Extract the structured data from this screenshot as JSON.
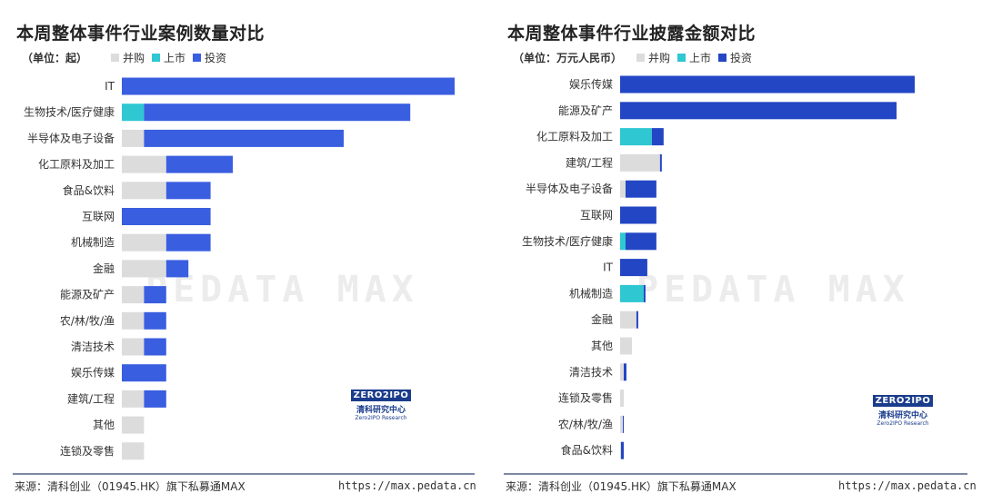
{
  "charts": [
    {
      "type": "bar",
      "orientation": "horizontal",
      "stacked": true,
      "title": "本周整体事件行业案例数量对比",
      "unit": "（单位：起）",
      "legend_position": "top-left",
      "categories": [
        "IT",
        "生物技术/医疗健康",
        "半导体及电子设备",
        "化工原料及加工",
        "食品&饮料",
        "互联网",
        "机械制造",
        "金融",
        "能源及矿产",
        "农/林/牧/渔",
        "清洁技术",
        "娱乐传媒",
        "建筑/工程",
        "其他",
        "连锁及零售"
      ],
      "series": [
        {
          "name": "并购",
          "color": "#dcdcdc",
          "values": [
            0,
            0,
            1,
            2,
            2,
            0,
            2,
            2,
            1,
            1,
            1,
            0,
            1,
            1,
            1
          ]
        },
        {
          "name": "上市",
          "color": "#2ec7d2",
          "values": [
            0,
            1,
            0,
            0,
            0,
            0,
            0,
            0,
            0,
            0,
            0,
            0,
            0,
            0,
            0
          ]
        },
        {
          "name": "投资",
          "color": "#3a5ee0",
          "values": [
            15,
            12,
            9,
            3,
            2,
            4,
            2,
            1,
            1,
            1,
            1,
            2,
            1,
            0,
            0
          ]
        }
      ]
    },
    {
      "type": "bar",
      "orientation": "horizontal",
      "stacked": true,
      "title": "本周整体事件行业披露金额对比",
      "unit": "（单位：万元人民币）",
      "legend_position": "top-left",
      "categories": [
        "娱乐传媒",
        "能源及矿产",
        "化工原料及加工",
        "建筑/工程",
        "半导体及电子设备",
        "互联网",
        "生物技术/医疗健康",
        "IT",
        "机械制造",
        "金融",
        "其他",
        "清洁技术",
        "连锁及零售",
        "农/林/牧/渔",
        "食品&饮料"
      ],
      "series": [
        {
          "name": "并购",
          "color": "#dcdcdc",
          "values": [
            0,
            0,
            0,
            44,
            6,
            0,
            0,
            0,
            0,
            18,
            13,
            4,
            4,
            3,
            1
          ]
        },
        {
          "name": "上市",
          "color": "#2ec7d2",
          "values": [
            0,
            0,
            35,
            0,
            0,
            0,
            6,
            0,
            26,
            0,
            0,
            0,
            0,
            0,
            0
          ]
        },
        {
          "name": "投资",
          "color": "#2346c4",
          "values": [
            325,
            305,
            13,
            2,
            34,
            40,
            34,
            30,
            2,
            2,
            0,
            3,
            0,
            1,
            3
          ]
        }
      ]
    }
  ],
  "footer": {
    "source": "来源：清科创业（01945.HK）旗下私募通MAX",
    "url": "https://max.pedata.cn"
  },
  "watermark": "PEDATA MAX",
  "logo": {
    "box": "ZERO2IPO",
    "cn": "清科研究中心",
    "en": "Zero2IPO Research"
  }
}
